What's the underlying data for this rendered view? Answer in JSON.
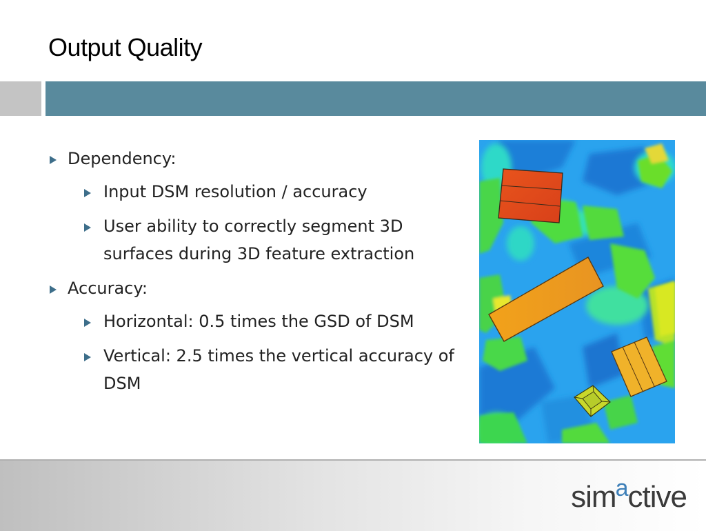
{
  "slide": {
    "title": "Output Quality"
  },
  "bullets": [
    {
      "level": 1,
      "text": "Dependency:"
    },
    {
      "level": 2,
      "text": "Input DSM resolution / accuracy"
    },
    {
      "level": 2,
      "text": "User ability to correctly segment 3D surfaces during 3D feature extraction"
    },
    {
      "level": 1,
      "text": "Accuracy:"
    },
    {
      "level": 2,
      "text": "Horizontal: 0.5 times the GSD of DSM"
    },
    {
      "level": 2,
      "text": "Vertical: 2.5 times the vertical accuracy of DSM"
    }
  ],
  "logo": {
    "part1": "sim",
    "part2": "a",
    "part3": "ctive"
  },
  "colors": {
    "accent": "#598a9d",
    "bullet_arrow": "#3d6e8a",
    "logo_a": "#3d7fb8"
  }
}
